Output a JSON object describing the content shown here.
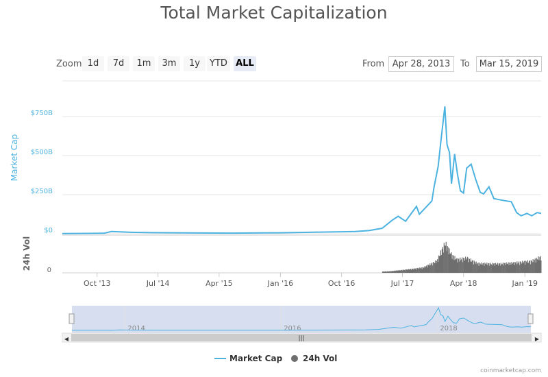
{
  "title": "Total Market Capitalization",
  "zoom": {
    "label": "Zoom",
    "buttons": [
      "1d",
      "7d",
      "1m",
      "3m",
      "1y",
      "YTD",
      "ALL"
    ],
    "active": "ALL"
  },
  "range": {
    "from_label": "From",
    "from_value": "Apr 28, 2013",
    "to_label": "To",
    "to_value": "Mar 15, 2019"
  },
  "colors": {
    "market_cap": "#4cb2e0",
    "volume": "#6e6e6e",
    "navigator_fill": "#ccd6eb"
  },
  "credit": "coinmarketcap.com",
  "chart_data": {
    "type": "line",
    "title": "Total Market Capitalization",
    "x_range": [
      "2013-04-28",
      "2019-03-15"
    ],
    "x_tick_labels": [
      "Oct '13",
      "Jul '14",
      "Apr '15",
      "Jan '16",
      "Oct '16",
      "Jul '17",
      "Apr '18",
      "Jan '19"
    ],
    "x_tick_dates": [
      "2013-10-01",
      "2014-07-01",
      "2015-04-01",
      "2016-01-01",
      "2016-10-01",
      "2017-07-01",
      "2018-04-01",
      "2019-01-01"
    ],
    "y_axis": {
      "label": "Market Cap",
      "tick_labels": [
        "$0",
        "$250B",
        "$500B",
        "$750B"
      ],
      "tick_values": [
        0,
        250,
        500,
        750
      ],
      "unit": "billion USD"
    },
    "volume_axis": {
      "label": "24h Vol",
      "tick_labels": [
        "0"
      ]
    },
    "series": [
      {
        "name": "Market Cap",
        "x": [
          "2013-04-28",
          "2013-11-01",
          "2013-12-04",
          "2014-03-01",
          "2014-06-01",
          "2015-01-01",
          "2015-06-01",
          "2016-01-01",
          "2016-06-01",
          "2016-12-01",
          "2017-02-01",
          "2017-04-01",
          "2017-05-15",
          "2017-06-12",
          "2017-07-15",
          "2017-08-15",
          "2017-09-02",
          "2017-09-15",
          "2017-10-15",
          "2017-11-10",
          "2017-11-20",
          "2017-12-08",
          "2017-12-22",
          "2018-01-07",
          "2018-01-17",
          "2018-01-28",
          "2018-02-06",
          "2018-02-20",
          "2018-03-05",
          "2018-03-18",
          "2018-04-01",
          "2018-04-15",
          "2018-05-05",
          "2018-05-25",
          "2018-06-15",
          "2018-06-30",
          "2018-07-24",
          "2018-08-15",
          "2018-09-01",
          "2018-10-01",
          "2018-11-01",
          "2018-11-25",
          "2018-12-15",
          "2019-01-10",
          "2019-02-01",
          "2019-02-25",
          "2019-03-15"
        ],
        "values": [
          1.5,
          3,
          14,
          9,
          7,
          5,
          4,
          6,
          10,
          14,
          20,
          35,
          85,
          112,
          80,
          140,
          175,
          125,
          170,
          210,
          300,
          430,
          610,
          815,
          570,
          520,
          320,
          510,
          380,
          275,
          260,
          420,
          445,
          350,
          265,
          255,
          300,
          225,
          220,
          212,
          205,
          135,
          115,
          130,
          115,
          135,
          130
        ]
      },
      {
        "name": "24h Vol",
        "x": [
          "2013-04-28",
          "2016-12-01",
          "2017-05-01",
          "2017-08-01",
          "2017-10-01",
          "2017-12-01",
          "2017-12-22",
          "2018-01-07",
          "2018-02-06",
          "2018-03-01",
          "2018-04-15",
          "2018-06-01",
          "2018-09-01",
          "2018-12-01",
          "2019-02-01",
          "2019-03-15"
        ],
        "values_relative": [
          0,
          0.01,
          0.05,
          0.12,
          0.18,
          0.4,
          0.75,
          1.0,
          0.6,
          0.45,
          0.5,
          0.32,
          0.3,
          0.35,
          0.4,
          0.55
        ]
      }
    ],
    "navigator": {
      "tick_labels": [
        "2014",
        "2016",
        "2018"
      ]
    },
    "legend": {
      "position": "bottom-center",
      "items": [
        "Market Cap",
        "24h Vol"
      ]
    }
  }
}
